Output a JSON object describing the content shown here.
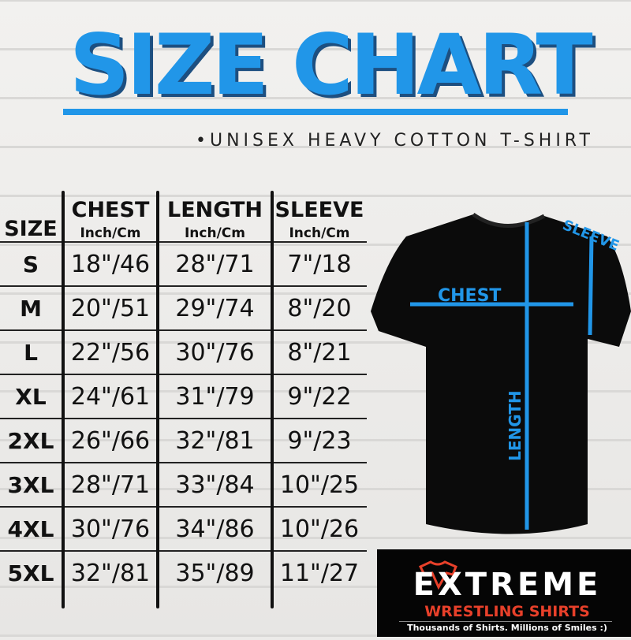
{
  "title": "SIZE CHART",
  "subtitle": "•UNISEX HEAVY COTTON T-SHIRT",
  "table": {
    "size_header": "SIZE",
    "columns": [
      {
        "label": "CHEST",
        "unit": "Inch/Cm"
      },
      {
        "label": "LENGTH",
        "unit": "Inch/Cm"
      },
      {
        "label": "SLEEVE",
        "unit": "Inch/Cm"
      }
    ],
    "rows": [
      {
        "size": "S",
        "values": [
          "18\"/46",
          "28\"/71",
          "7\"/18"
        ]
      },
      {
        "size": "M",
        "values": [
          "20\"/51",
          "29\"/74",
          "8\"/20"
        ]
      },
      {
        "size": "L",
        "values": [
          "22\"/56",
          "30\"/76",
          "8\"/21"
        ]
      },
      {
        "size": "XL",
        "values": [
          "24\"/61",
          "31\"/79",
          "9\"/22"
        ]
      },
      {
        "size": "2XL",
        "values": [
          "26\"/66",
          "32\"/81",
          "9\"/23"
        ]
      },
      {
        "size": "3XL",
        "values": [
          "28\"/71",
          "33\"/84",
          "10\"/25"
        ]
      },
      {
        "size": "4XL",
        "values": [
          "30\"/76",
          "34\"/86",
          "10\"/26"
        ]
      },
      {
        "size": "5XL",
        "values": [
          "32\"/81",
          "35\"/89",
          "11\"/27"
        ]
      }
    ]
  },
  "diagram": {
    "chest": "CHEST",
    "length": "LENGTH",
    "sleeve": "SLEEVE",
    "line_color": "#2196e8"
  },
  "logo": {
    "word": "EXTREME",
    "sub": "WRESTLING SHIRTS",
    "tagline": "Thousands of Shirts. Millions of Smiles :)"
  },
  "colors": {
    "accent": "#2196e8",
    "logo_red": "#e8402a"
  }
}
